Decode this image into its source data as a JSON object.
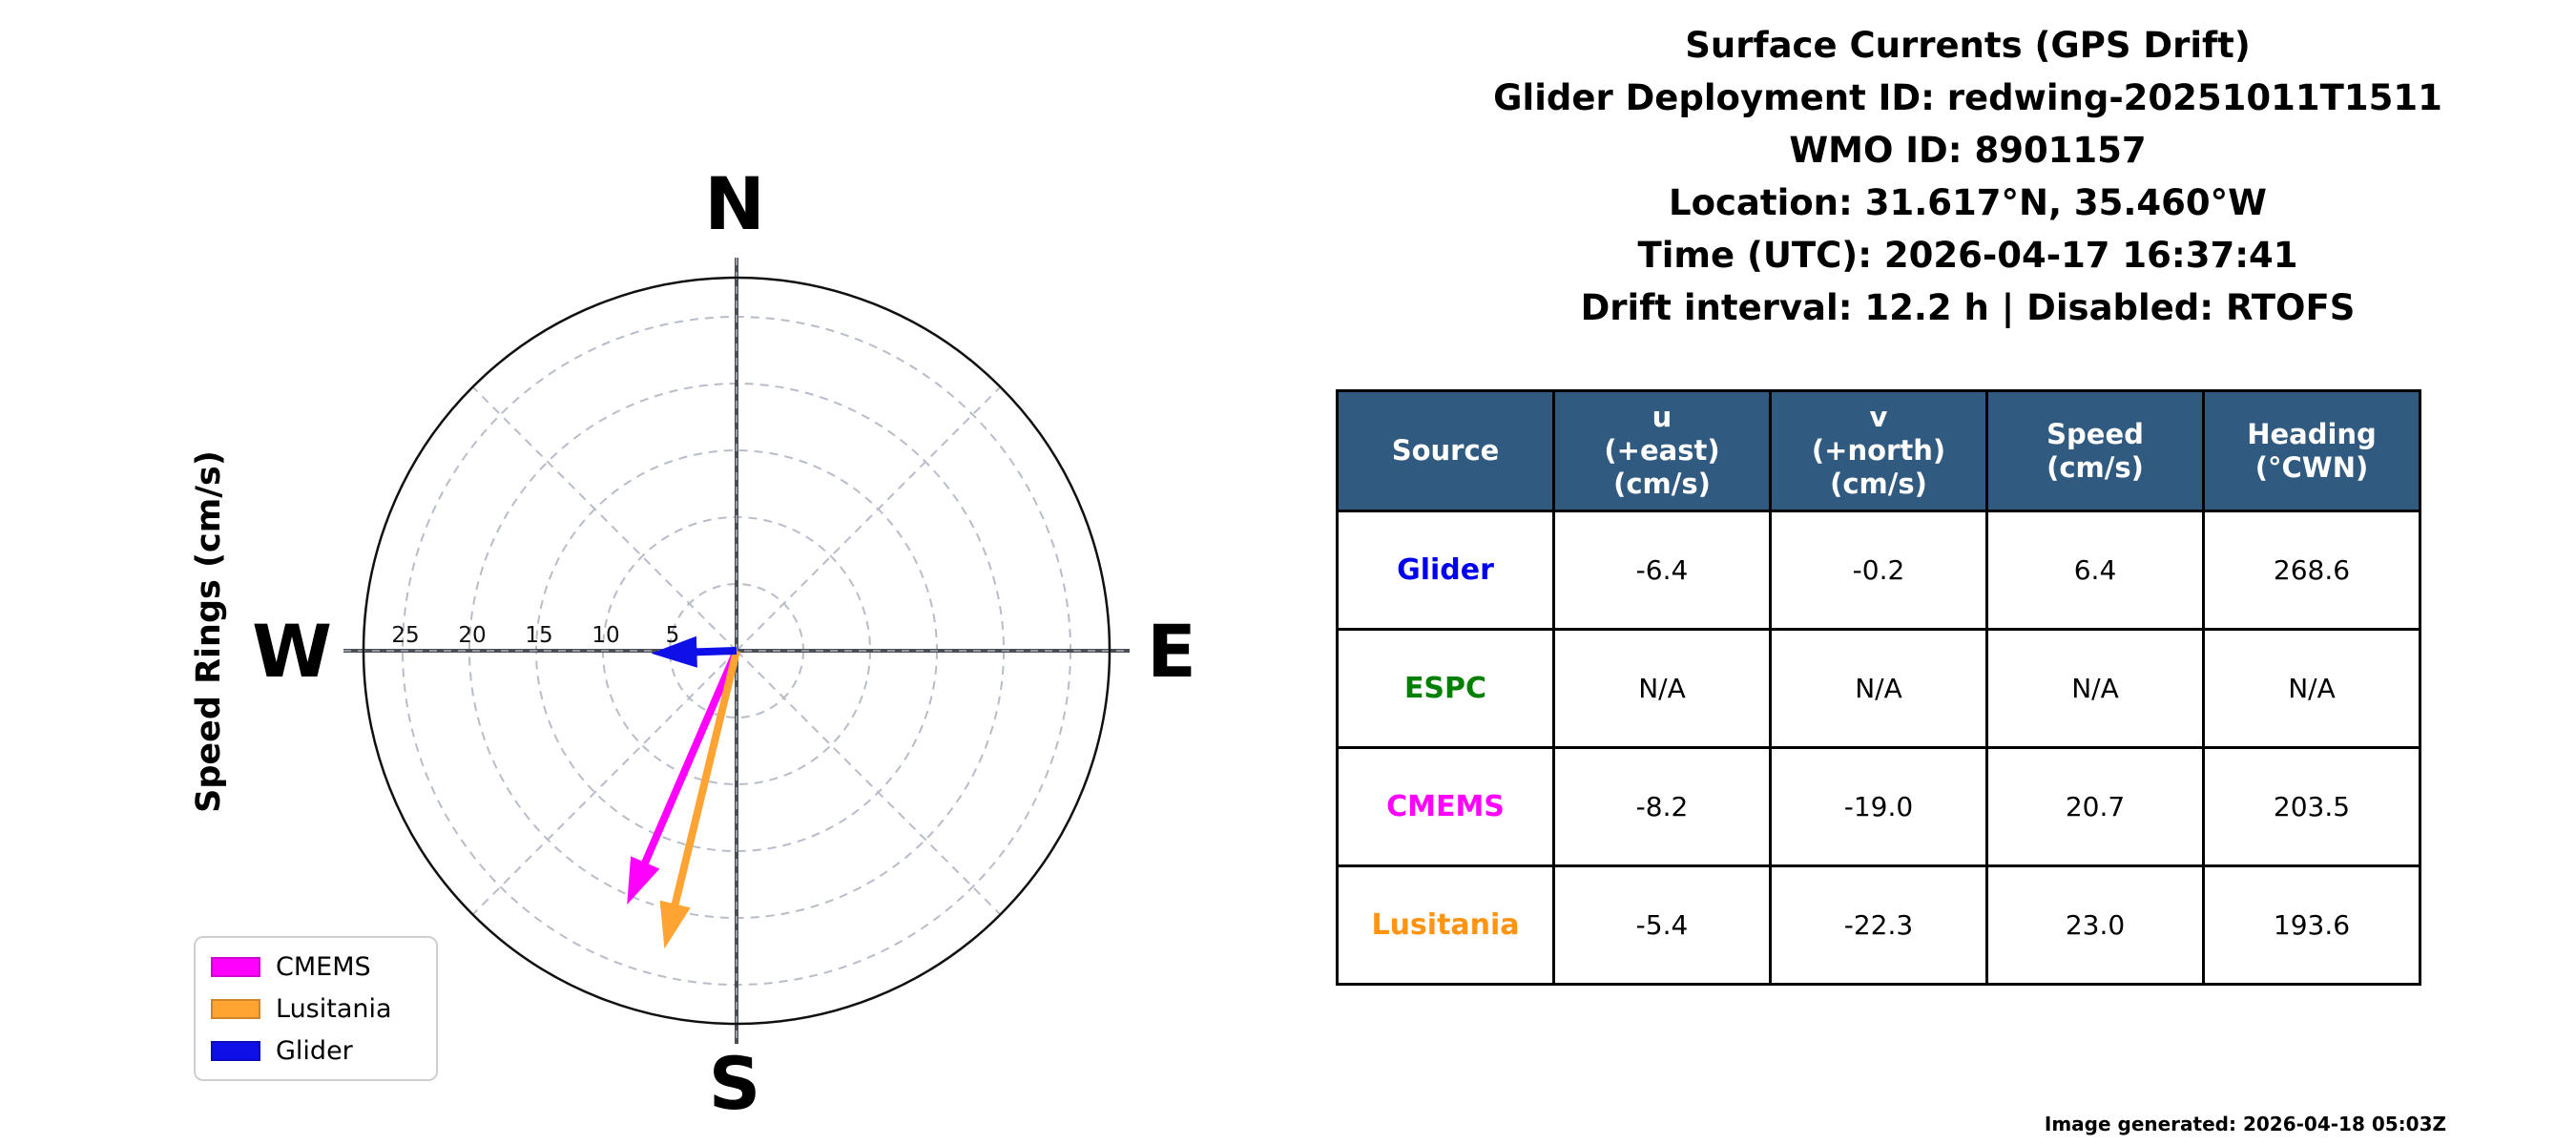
{
  "title": {
    "lines": [
      "Surface Currents (GPS Drift)",
      "Glider Deployment ID: redwing-20251011T1511",
      "WMO ID: 8901157",
      "Location: 31.617°N, 35.460°W",
      "Time (UTC): 2026-04-17 16:37:41",
      "Drift interval: 12.2 h | Disabled: RTOFS"
    ]
  },
  "plot": {
    "ylabel": "Speed Rings (cm/s)",
    "cardinals": {
      "n": "N",
      "e": "E",
      "s": "S",
      "w": "W"
    },
    "ring_ticks": [
      5,
      10,
      15,
      20,
      25
    ]
  },
  "legend": {
    "items": [
      {
        "label": "CMEMS",
        "color": "#ff00ff"
      },
      {
        "label": "Lusitania",
        "color": "#ffa333"
      },
      {
        "label": "Glider",
        "color": "#0f0fe8"
      }
    ]
  },
  "chart_data": {
    "type": "quiver-compass",
    "units": "cm/s",
    "ring_ticks": [
      5,
      10,
      15,
      20,
      25
    ],
    "ring_max": 27.9,
    "series": [
      {
        "name": "Glider",
        "color": "#0f0fe8",
        "u": -6.4,
        "v": -0.2,
        "speed": 6.4,
        "heading_cwn": 268.6
      },
      {
        "name": "ESPC",
        "color": "#008000",
        "u": null,
        "v": null,
        "speed": null,
        "heading_cwn": null
      },
      {
        "name": "CMEMS",
        "color": "#ff00ff",
        "u": -8.2,
        "v": -19.0,
        "speed": 20.7,
        "heading_cwn": 203.5
      },
      {
        "name": "Lusitania",
        "color": "#ffa333",
        "u": -5.4,
        "v": -22.3,
        "speed": 23.0,
        "heading_cwn": 193.6
      }
    ],
    "draw_order": [
      "CMEMS",
      "Lusitania",
      "Glider"
    ]
  },
  "table": {
    "header_bg": "#315a80",
    "headers": [
      [
        "Source"
      ],
      [
        "u",
        "(+east)",
        "(cm/s)"
      ],
      [
        "v",
        "(+north)",
        "(cm/s)"
      ],
      [
        "Speed",
        "(cm/s)"
      ],
      [
        "Heading",
        "(°CWN)"
      ]
    ],
    "rows": [
      {
        "source": "Glider",
        "color": "#0000ee",
        "u": "-6.4",
        "v": "-0.2",
        "speed": "6.4",
        "heading": "268.6"
      },
      {
        "source": "ESPC",
        "color": "#008000",
        "u": "N/A",
        "v": "N/A",
        "speed": "N/A",
        "heading": "N/A"
      },
      {
        "source": "CMEMS",
        "color": "#ff00ff",
        "u": "-8.2",
        "v": "-19.0",
        "speed": "20.7",
        "heading": "203.5"
      },
      {
        "source": "Lusitania",
        "color": "#ff9412",
        "u": "-5.4",
        "v": "-22.3",
        "speed": "23.0",
        "heading": "193.6"
      }
    ]
  },
  "footer": {
    "generated": "Image generated: 2026-04-18 05:03Z"
  }
}
